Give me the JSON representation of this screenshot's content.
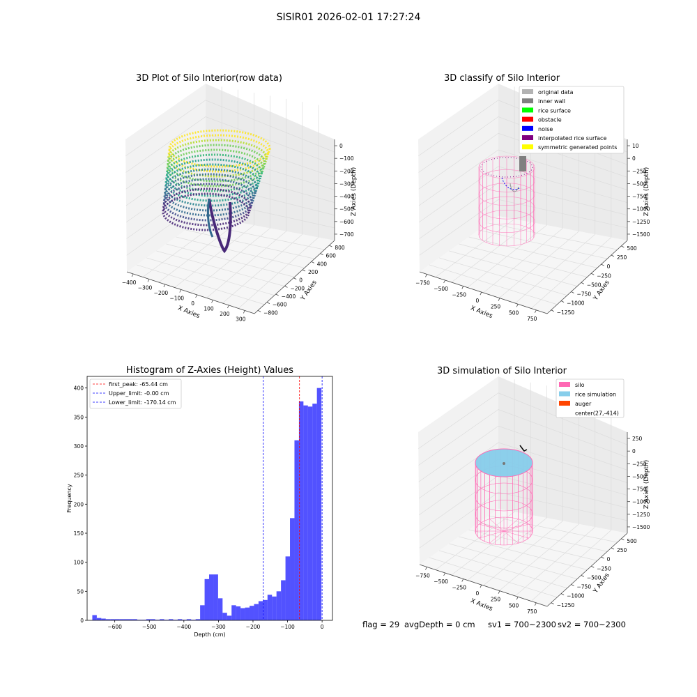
{
  "suptitle": "SISIR01 2026-02-01 17:27:24",
  "colors": {
    "hist_bar": "#0000ff",
    "first_peak_line": "#ff0000",
    "upper_line": "#0000ff",
    "lower_line": "#0000ff",
    "silo": "#ff69b4",
    "rice_simulation": "#87ceeb",
    "auger": "#ff4500",
    "original_data": "#b3b3b3",
    "inner_wall": "#808080",
    "rice_surface": "#00ff00",
    "obstacle": "#ff0000",
    "noise": "#0000ff",
    "interpolated_rice_surface": "#800080",
    "symmetric_generated_points": "#ffff00"
  },
  "footer": {
    "flag": "flag = 29",
    "avg_depth": "avgDepth = 0 cm",
    "sv1": "sv1 = 700~2300",
    "sv2": "sv2 = 700~2300"
  },
  "chart_data": [
    {
      "type": "scatter",
      "title": "3D Plot of Silo Interior(row data)",
      "xlabel": "X Axies",
      "ylabel": "Y Axies",
      "zlabel": "Z Axies (Depth)",
      "x_ticks": [
        "−400",
        "−300",
        "−200",
        "−100",
        "0",
        "100",
        "200",
        "300"
      ],
      "y_ticks": [
        "−800",
        "−600",
        "−400",
        "−200",
        "0",
        "200",
        "400",
        "600",
        "800"
      ],
      "z_ticks": [
        "0",
        "−100",
        "−200",
        "−300",
        "−400",
        "−500",
        "−600",
        "−700"
      ],
      "xlim": [
        -450,
        300
      ],
      "ylim": [
        -850,
        850
      ],
      "zlim": [
        -750,
        0
      ],
      "colormap": "viridis"
    },
    {
      "type": "scatter",
      "title": "3D classify of Silo Interior",
      "xlabel": "X Axies",
      "ylabel": "Y Axies",
      "zlabel": "Z Axies (Depth)",
      "x_ticks": [
        "−750",
        "−500",
        "−250",
        "0",
        "250",
        "500",
        "750"
      ],
      "y_ticks": [
        "−1250",
        "−1000",
        "−750",
        "−500",
        "−250",
        "0",
        "250",
        "500"
      ],
      "z_ticks": [
        "10",
        "0",
        "−250",
        "−500",
        "−750",
        "−1000",
        "−1250",
        "−1500"
      ],
      "legend": [
        "original data",
        "inner wall",
        "rice surface",
        "obstacle",
        "noise",
        "interpolated rice surface",
        "symmetric generated points"
      ],
      "legend_position": "upper right"
    },
    {
      "type": "bar",
      "title": "Histogram of Z-Axies (Height) Values",
      "xlabel": "Depth (cm)",
      "ylabel": "Frequency",
      "xlim": [
        -680,
        30
      ],
      "ylim": [
        0,
        420
      ],
      "x_ticks": [
        -600,
        -500,
        -400,
        -300,
        -200,
        -100,
        0
      ],
      "y_ticks": [
        0,
        50,
        100,
        150,
        200,
        250,
        300,
        350,
        400
      ],
      "bins": [
        {
          "start": -665,
          "end": -652,
          "count": 9
        },
        {
          "start": -652,
          "end": -639,
          "count": 4
        },
        {
          "start": -639,
          "end": -626,
          "count": 3
        },
        {
          "start": -626,
          "end": -613,
          "count": 2
        },
        {
          "start": -613,
          "end": -600,
          "count": 2
        },
        {
          "start": -600,
          "end": -587,
          "count": 2
        },
        {
          "start": -587,
          "end": -574,
          "count": 2
        },
        {
          "start": -574,
          "end": -561,
          "count": 2
        },
        {
          "start": -561,
          "end": -548,
          "count": 2
        },
        {
          "start": -548,
          "end": -535,
          "count": 2
        },
        {
          "start": -535,
          "end": -522,
          "count": 1
        },
        {
          "start": -522,
          "end": -509,
          "count": 1
        },
        {
          "start": -509,
          "end": -496,
          "count": 2
        },
        {
          "start": -496,
          "end": -483,
          "count": 2
        },
        {
          "start": -483,
          "end": -470,
          "count": 1
        },
        {
          "start": -470,
          "end": -457,
          "count": 2
        },
        {
          "start": -457,
          "end": -444,
          "count": 1
        },
        {
          "start": -444,
          "end": -431,
          "count": 2
        },
        {
          "start": -431,
          "end": -418,
          "count": 1
        },
        {
          "start": -418,
          "end": -405,
          "count": 2
        },
        {
          "start": -405,
          "end": -392,
          "count": 1
        },
        {
          "start": -392,
          "end": -379,
          "count": 2
        },
        {
          "start": -379,
          "end": -366,
          "count": 1
        },
        {
          "start": -366,
          "end": -353,
          "count": 2
        },
        {
          "start": -353,
          "end": -340,
          "count": 26
        },
        {
          "start": -340,
          "end": -327,
          "count": 71
        },
        {
          "start": -327,
          "end": -314,
          "count": 79
        },
        {
          "start": -314,
          "end": -301,
          "count": 79
        },
        {
          "start": -301,
          "end": -288,
          "count": 38
        },
        {
          "start": -288,
          "end": -275,
          "count": 13
        },
        {
          "start": -275,
          "end": -262,
          "count": 8
        },
        {
          "start": -262,
          "end": -249,
          "count": 26
        },
        {
          "start": -249,
          "end": -236,
          "count": 24
        },
        {
          "start": -236,
          "end": -223,
          "count": 21
        },
        {
          "start": -223,
          "end": -210,
          "count": 22
        },
        {
          "start": -210,
          "end": -197,
          "count": 25
        },
        {
          "start": -197,
          "end": -184,
          "count": 28
        },
        {
          "start": -184,
          "end": -171,
          "count": 33
        },
        {
          "start": -171,
          "end": -158,
          "count": 35
        },
        {
          "start": -158,
          "end": -145,
          "count": 44
        },
        {
          "start": -145,
          "end": -132,
          "count": 41
        },
        {
          "start": -132,
          "end": -119,
          "count": 50
        },
        {
          "start": -119,
          "end": -106,
          "count": 69
        },
        {
          "start": -106,
          "end": -93,
          "count": 110
        },
        {
          "start": -93,
          "end": -80,
          "count": 176
        },
        {
          "start": -80,
          "end": -67,
          "count": 310
        },
        {
          "start": -67,
          "end": -54,
          "count": 377
        },
        {
          "start": -54,
          "end": -41,
          "count": 370
        },
        {
          "start": -41,
          "end": -28,
          "count": 368
        },
        {
          "start": -28,
          "end": -15,
          "count": 373
        },
        {
          "start": -15,
          "end": -2,
          "count": 400
        }
      ],
      "vlines": [
        {
          "name": "first_peak: -65.44 cm",
          "x": -65.44,
          "color": "#ff0000"
        },
        {
          "name": "Upper_limit: -0.00 cm",
          "x": -0.0,
          "color": "#0000ff"
        },
        {
          "name": "Lower_limit: -170.14 cm",
          "x": -170.14,
          "color": "#0000ff"
        }
      ],
      "legend_position": "upper left"
    },
    {
      "type": "scatter",
      "title": "3D simulation of Silo Interior",
      "xlabel": "X Axies",
      "ylabel": "Y Axies",
      "zlabel": "Z Axies (Depth)",
      "x_ticks": [
        "−750",
        "−500",
        "−250",
        "0",
        "250",
        "500",
        "750"
      ],
      "y_ticks": [
        "−1250",
        "−1000",
        "−750",
        "−500",
        "−250",
        "0",
        "250",
        "500"
      ],
      "z_ticks": [
        "250",
        "0",
        "−250",
        "−500",
        "−750",
        "−1000",
        "−1250",
        "−1500"
      ],
      "legend": [
        "silo",
        "rice simulation",
        "auger",
        "center(27,-414)"
      ],
      "legend_position": "upper right"
    }
  ]
}
